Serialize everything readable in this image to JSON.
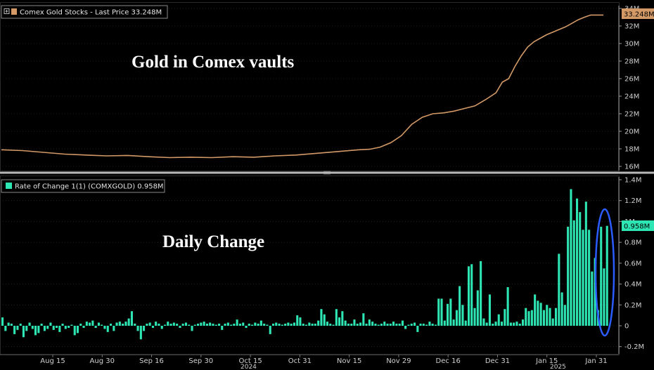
{
  "colors": {
    "gold_line": "#d39a67",
    "bar": "#2ee6b4",
    "grid": "#3a3a3a",
    "separator": "#b9b9b9",
    "highlight_ellipse": "#2b5cff",
    "last_price_badge": "#d39a67",
    "last_change_badge": "#2ee6b4"
  },
  "chart_data": [
    {
      "type": "line",
      "legend_label": "Comex Gold Stocks - Last Price 33.248M",
      "annotation": "Gold in Comex vaults",
      "last_value_label": "33.248M",
      "yticks": [
        "34M",
        "32M",
        "30M",
        "28M",
        "26M",
        "24M",
        "22M",
        "20M",
        "18M",
        "16M"
      ],
      "ylim": [
        15.5,
        34.5
      ],
      "unit": "M",
      "series": [
        {
          "x": [
            0,
            10,
            20,
            30,
            40,
            50,
            60,
            70,
            80,
            90,
            100,
            110,
            120,
            130,
            140,
            150,
            160,
            170,
            175,
            180,
            185,
            190,
            195,
            200,
            205,
            210,
            215,
            220,
            225,
            230,
            235,
            238,
            241,
            244,
            247,
            250,
            253,
            256,
            259,
            262,
            265,
            268,
            271,
            274,
            277,
            280,
            283,
            286
          ],
          "values": [
            17.9,
            17.8,
            17.6,
            17.4,
            17.3,
            17.2,
            17.25,
            17.1,
            17.0,
            17.05,
            17.0,
            17.1,
            17.05,
            17.2,
            17.3,
            17.5,
            17.7,
            17.9,
            17.95,
            18.2,
            18.7,
            19.5,
            20.8,
            21.6,
            22.0,
            22.1,
            22.3,
            22.6,
            22.9,
            23.6,
            24.4,
            25.6,
            26.0,
            27.4,
            28.6,
            29.6,
            30.2,
            30.6,
            31.0,
            31.3,
            31.6,
            31.9,
            32.3,
            32.7,
            33.0,
            33.248,
            33.248,
            33.248
          ]
        }
      ]
    },
    {
      "type": "bar",
      "legend_label": "Rate of Change 1(1) (COMXGOLD) 0.958M",
      "annotation": "Daily Change",
      "last_value_label": "0.958M",
      "yticks": [
        "1.4M",
        "1.2M",
        "1M",
        "0.8M",
        "0.6M",
        "0.4M",
        "0.2M",
        "0",
        "-0.2M"
      ],
      "ylim": [
        -0.2,
        1.4
      ],
      "unit": "M",
      "values": [
        0.08,
        -0.05,
        0.03,
        0.02,
        -0.08,
        -0.04,
        0.02,
        -0.11,
        -0.05,
        0.03,
        -0.03,
        -0.09,
        -0.07,
        0.02,
        -0.05,
        -0.03,
        0.03,
        -0.04,
        -0.02,
        -0.06,
        0.02,
        -0.03,
        -0.02,
        0.01,
        -0.09,
        -0.07,
        0.02,
        -0.02,
        0.04,
        0.03,
        0.05,
        -0.02,
        0.03,
        0.01,
        -0.03,
        -0.06,
        0.02,
        -0.05,
        0.03,
        0.04,
        0.02,
        0.04,
        0.07,
        0.14,
        0.02,
        -0.05,
        -0.13,
        -0.05,
        0.02,
        0.03,
        -0.02,
        0.04,
        0.02,
        -0.03,
        0.01,
        0.04,
        0.02,
        0.03,
        0.02,
        -0.02,
        0.02,
        0.03,
        0.01,
        -0.05,
        0.01,
        0.02,
        0.03,
        0.04,
        0.02,
        0.03,
        0.02,
        0.01,
        0.02,
        -0.04,
        0.02,
        0.03,
        0.01,
        0.02,
        0.06,
        0.02,
        0.03,
        -0.02,
        0.02,
        0.01,
        0.03,
        0.02,
        0.05,
        0.02,
        0.01,
        -0.08,
        0.02,
        0.03,
        0.02,
        0.01,
        0.02,
        0.03,
        0.02,
        0.03,
        0.1,
        0.08,
        0.02,
        0.01,
        0.03,
        0.02,
        0.02,
        0.05,
        0.16,
        0.11,
        0.04,
        0.02,
        0.01,
        0.16,
        0.08,
        0.14,
        0.05,
        0.02,
        0.02,
        0.06,
        0.02,
        0.03,
        0.12,
        0.02,
        0.06,
        0.04,
        0.02,
        0.01,
        0.02,
        0.04,
        0.02,
        0.02,
        0.04,
        0.02,
        0.02,
        0.05,
        -0.03,
        0.01,
        0.02,
        0.03,
        -0.06,
        0.02,
        0.02,
        0.01,
        0.04,
        0.02,
        0.01,
        0.26,
        0.26,
        0.05,
        0.21,
        0.26,
        0.06,
        0.15,
        0.38,
        0.2,
        0.05,
        0.57,
        0.59,
        0.17,
        0.34,
        0.62,
        0.07,
        0.03,
        0.3,
        0.02,
        0.04,
        0.11,
        0.04,
        0.16,
        0.37,
        0.03,
        0.03,
        0.04,
        0.02,
        0.06,
        0.17,
        0.14,
        0.15,
        0.3,
        0.24,
        0.22,
        0.15,
        0.2,
        0.17,
        0.07,
        0.17,
        0.69,
        0.32,
        0.2,
        0.95,
        1.31,
        1.01,
        1.22,
        1.09,
        0.92,
        1.19,
        0.92,
        0.52,
        0.65,
        0.15,
        0.95,
        0.55,
        0.958
      ]
    }
  ],
  "x_axis": {
    "labels": [
      "Aug 15",
      "Aug 30",
      "Sep 16",
      "Sep 30",
      "Oct 15",
      "Oct 31",
      "Nov 15",
      "Nov 29",
      "Dec 16",
      "Dec 31",
      "Jan 15",
      "Jan 31"
    ],
    "years": [
      "2024",
      "2025"
    ]
  }
}
